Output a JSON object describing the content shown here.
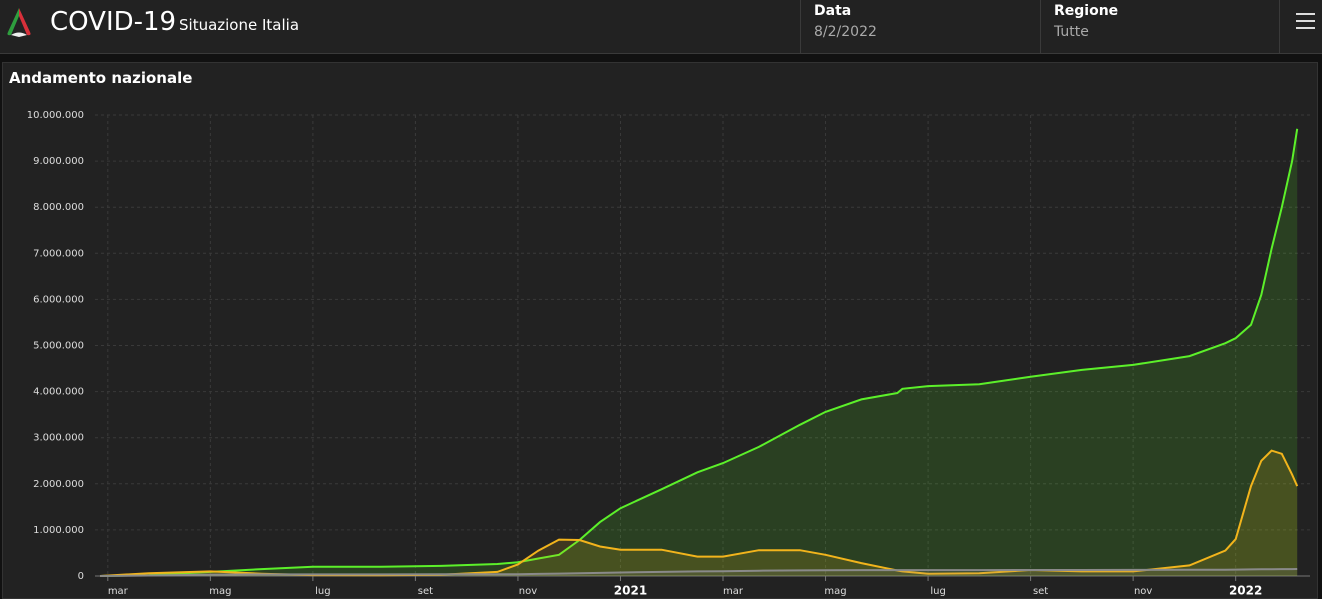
{
  "header": {
    "title": "COVID-19",
    "subtitle": "Situazione Italia",
    "date_label": "Data",
    "date_value": "8/2/2022",
    "region_label": "Regione",
    "region_value": "Tutte"
  },
  "panel": {
    "title": "Andamento nazionale"
  },
  "chart_data": {
    "type": "area",
    "grid": true,
    "x": [
      -0.15,
      0.8,
      2,
      3,
      4,
      5.3,
      6.5,
      7.6,
      8,
      8.4,
      8.8,
      9.2,
      9.6,
      10,
      10.8,
      11.5,
      12,
      12.7,
      13.5,
      14,
      14.7,
      15.4,
      15.5,
      16,
      17,
      18,
      19,
      20,
      21.1,
      21.8,
      22,
      22.3,
      22.5,
      22.7,
      22.9,
      23.1,
      23.2
    ],
    "xlim": [
      -0.25,
      23.45
    ],
    "xticks": [
      {
        "value": 0,
        "label": "mar"
      },
      {
        "value": 2,
        "label": "mag"
      },
      {
        "value": 4,
        "label": "lug"
      },
      {
        "value": 6,
        "label": "set"
      },
      {
        "value": 8,
        "label": "nov"
      },
      {
        "value": 10,
        "label": "2021"
      },
      {
        "value": 12,
        "label": "mar"
      },
      {
        "value": 14,
        "label": "mag"
      },
      {
        "value": 16,
        "label": "lug"
      },
      {
        "value": 18,
        "label": "set"
      },
      {
        "value": 20,
        "label": "nov"
      },
      {
        "value": 22,
        "label": "2022"
      }
    ],
    "ylim": [
      0,
      10000000
    ],
    "yticks": [
      0,
      {
        "value": 1000000,
        "label": "1.000.000"
      },
      {
        "value": 2000000,
        "label": "2.000.000"
      },
      {
        "value": 3000000,
        "label": "3.000.000"
      },
      {
        "value": 4000000,
        "label": "4.000.000"
      },
      {
        "value": 5000000,
        "label": "5.000.000"
      },
      {
        "value": 6000000,
        "label": "6.000.000"
      },
      {
        "value": 7000000,
        "label": "7.000.000"
      },
      {
        "value": 8000000,
        "label": "8.000.000"
      },
      {
        "value": 9000000,
        "label": "9.000.000"
      },
      {
        "value": 10000000,
        "label": "10.000.000"
      }
    ],
    "series": [
      {
        "color": "#5cf02a",
        "values": [
          0,
          20000,
          90000,
          150000,
          200000,
          200000,
          220000,
          260000,
          300000,
          380000,
          460000,
          780000,
          1170000,
          1470000,
          1880000,
          2250000,
          2450000,
          2800000,
          3280000,
          3560000,
          3830000,
          3970000,
          4060000,
          4120000,
          4160000,
          4320000,
          4470000,
          4580000,
          4770000,
          5050000,
          5160000,
          5450000,
          6100000,
          7100000,
          8000000,
          9000000,
          9700000
        ]
      },
      {
        "color": "#f2b41c",
        "values": [
          0,
          60000,
          100000,
          50000,
          20000,
          15000,
          25000,
          90000,
          250000,
          550000,
          790000,
          780000,
          640000,
          570000,
          570000,
          420000,
          420000,
          560000,
          560000,
          460000,
          280000,
          120000,
          100000,
          50000,
          60000,
          130000,
          100000,
          100000,
          230000,
          550000,
          800000,
          1950000,
          2500000,
          2720000,
          2650000,
          2200000,
          1950000
        ]
      },
      {
        "color": "#8a8a8a",
        "values": [
          0,
          10000,
          30000,
          34000,
          35000,
          35000,
          36000,
          38000,
          40000,
          45000,
          52000,
          60000,
          68000,
          75000,
          90000,
          100000,
          105000,
          115000,
          122000,
          125000,
          127000,
          128000,
          128000,
          128000,
          129000,
          130000,
          131000,
          132000,
          135000,
          137000,
          139000,
          143000,
          145000,
          147000,
          149000,
          150000,
          151000
        ]
      }
    ]
  }
}
